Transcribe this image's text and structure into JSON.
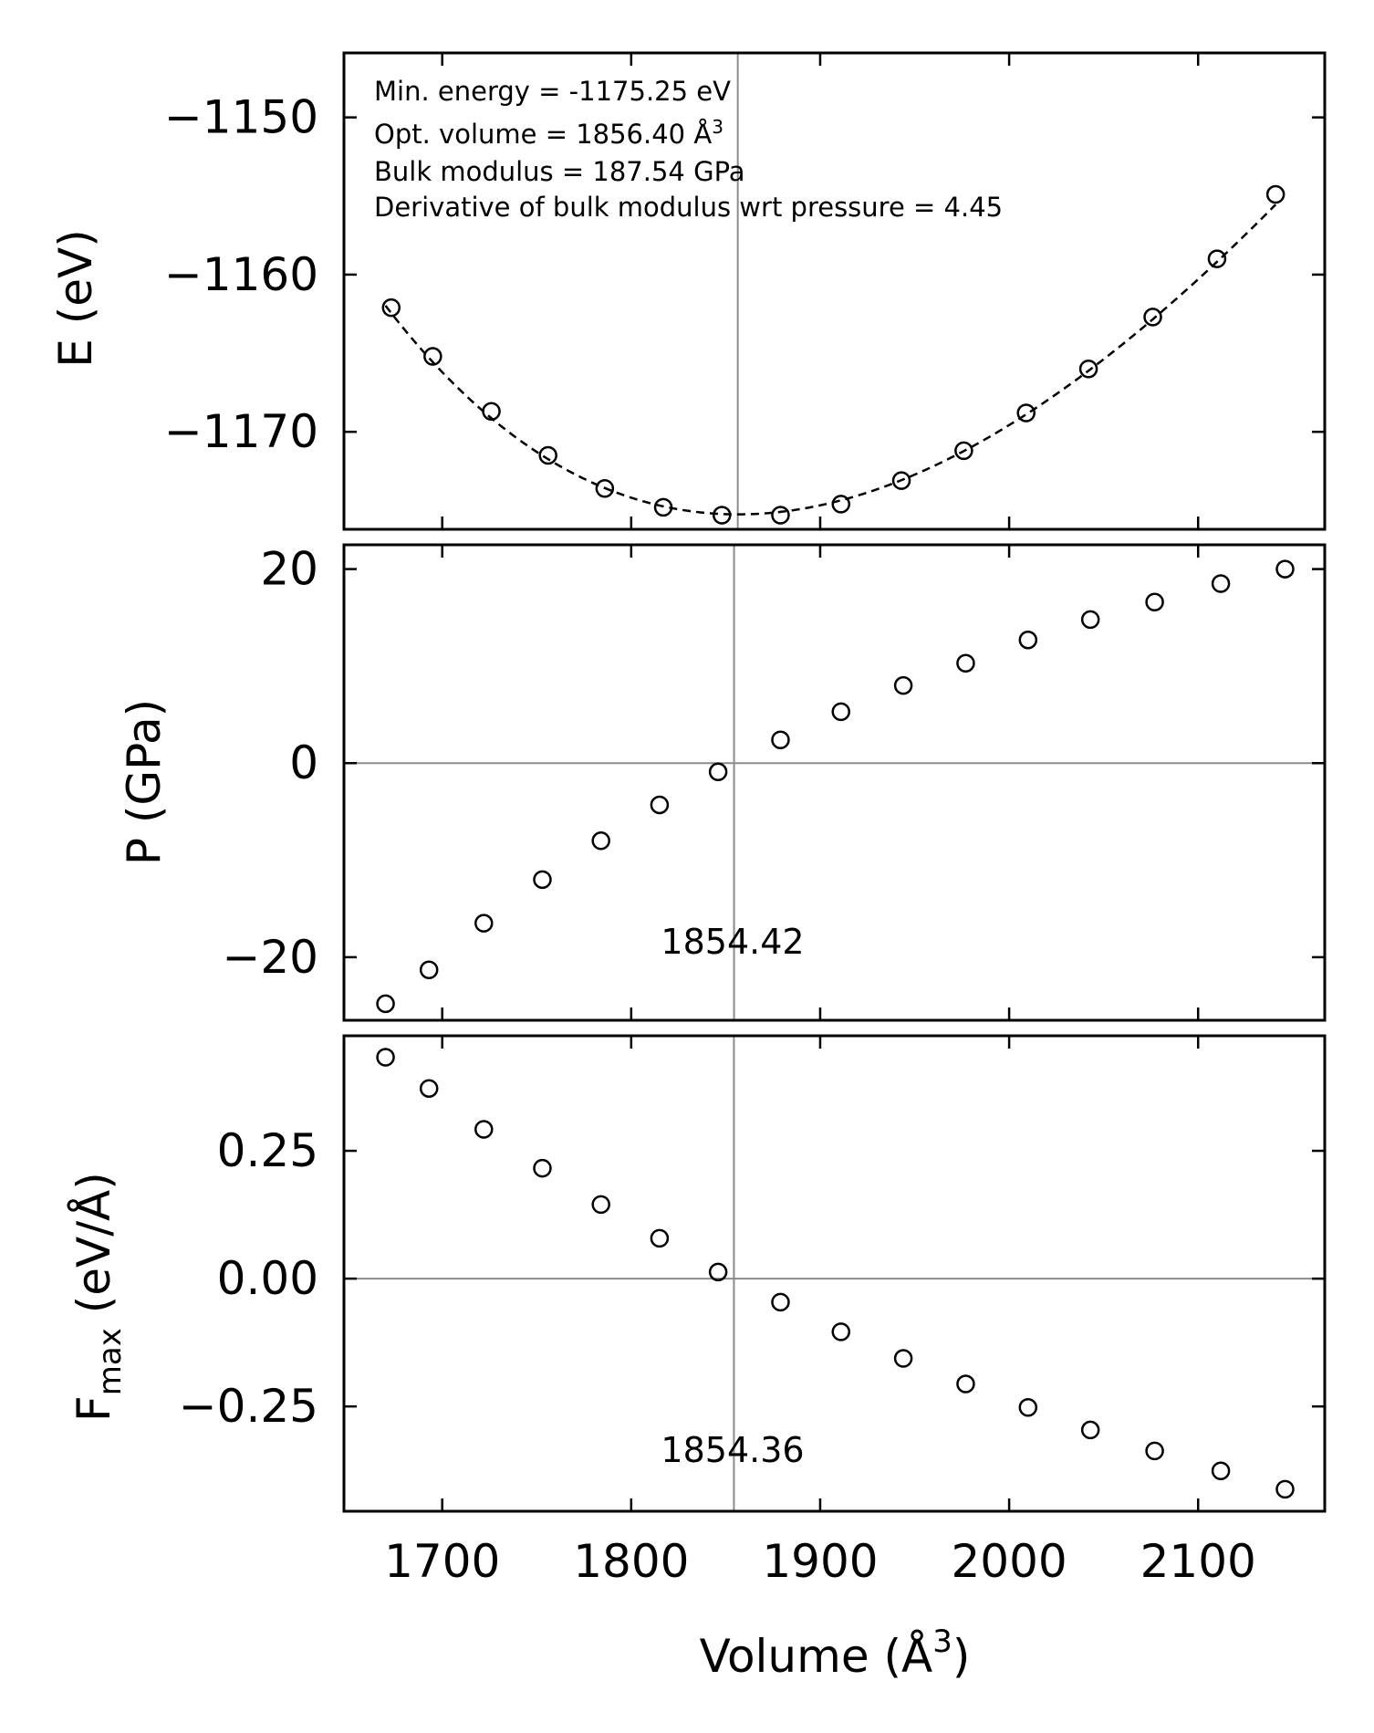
{
  "chart_data": {
    "type": "scatter",
    "xlabel": "Volume (Å³)",
    "xlabel_text": "Volume (Å",
    "xlabel_sup": "3",
    "xlabel_close": ")",
    "xlim": [
      1648,
      2167
    ],
    "xticks": [
      1700,
      1800,
      1900,
      2000,
      2100
    ],
    "xtick_labels": [
      "1700",
      "1800",
      "1900",
      "2000",
      "2100"
    ],
    "panels": [
      {
        "id": "energy",
        "ylabel": "E (eV)",
        "ylim": [
          -1176.2,
          -1145.9
        ],
        "yticks": [
          -1150,
          -1160,
          -1170
        ],
        "ytick_labels": [
          "−1150",
          "−1160",
          "−1170"
        ],
        "vline_x": 1856.4,
        "annotation": {
          "line1": "Min. energy = -1175.25 eV",
          "line2_text": "Opt. volume = 1856.40 Å",
          "line2_sup": "3",
          "line3": "Bulk modulus = 187.54 GPa",
          "line4": "Derivative of bulk modulus wrt pressure = 4.45"
        },
        "fit_curve": {
          "style": "dashed",
          "E0": -1175.25,
          "V0": 1856.4,
          "x_range": [
            1670,
            2141
          ]
        },
        "series": [
          {
            "name": "E",
            "x": [
              1673,
              1695,
              1726,
              1756,
              1786,
              1817,
              1848,
              1879,
              1911,
              1943,
              1976,
              2009,
              2042,
              2076,
              2110,
              2141
            ],
            "y": [
              -1162.1,
              -1165.2,
              -1168.7,
              -1171.5,
              -1173.6,
              -1174.8,
              -1175.3,
              -1175.3,
              -1174.6,
              -1173.1,
              -1171.2,
              -1168.8,
              -1166.0,
              -1162.7,
              -1159.0,
              -1154.9
            ]
          }
        ]
      },
      {
        "id": "pressure",
        "ylabel": "P (GPa)",
        "ylim": [
          -26.5,
          22.5
        ],
        "yticks": [
          20,
          0,
          -20
        ],
        "ytick_labels": [
          "20",
          "0",
          "−20"
        ],
        "vline_x": 1854.42,
        "hline_y": 0,
        "zero_crossing_label": "1854.42",
        "series": [
          {
            "name": "P",
            "x": [
              1670,
              1693,
              1722,
              1753,
              1784,
              1815,
              1846,
              1879,
              1911,
              1944,
              1977,
              2010,
              2043,
              2077,
              2112,
              2146
            ],
            "y": [
              -24.8,
              -21.3,
              -16.5,
              -12.0,
              -8.0,
              -4.3,
              -0.9,
              2.4,
              5.3,
              8.0,
              10.3,
              12.7,
              14.8,
              16.6,
              18.5,
              20.0
            ]
          }
        ]
      },
      {
        "id": "force",
        "ylabel": "F",
        "ylabel_sub": "max",
        "ylabel_rest": " (eV/Å)",
        "ylim": [
          -0.455,
          0.475
        ],
        "yticks": [
          0.25,
          0.0,
          -0.25
        ],
        "ytick_labels": [
          "0.25",
          "0.00",
          "−0.25"
        ],
        "vline_x": 1854.36,
        "hline_y": 0,
        "zero_crossing_label": "1854.36",
        "series": [
          {
            "name": "F_max",
            "x": [
              1670,
              1693,
              1722,
              1753,
              1784,
              1815,
              1846,
              1879,
              1911,
              1944,
              1977,
              2010,
              2043,
              2077,
              2112,
              2146
            ],
            "y": [
              0.433,
              0.372,
              0.292,
              0.216,
              0.145,
              0.079,
              0.013,
              -0.046,
              -0.104,
              -0.156,
              -0.206,
              -0.252,
              -0.296,
              -0.337,
              -0.376,
              -0.412
            ]
          }
        ]
      }
    ]
  }
}
